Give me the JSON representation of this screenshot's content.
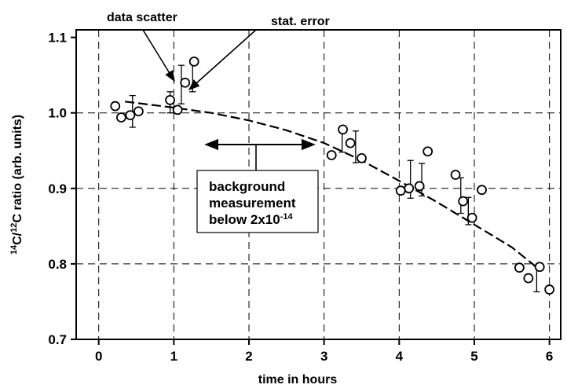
{
  "chart_data": {
    "type": "scatter",
    "title": "",
    "xlabel": "time in hours",
    "ylabel_sup1": "14",
    "ylabel_mid": "C/",
    "ylabel_sup2": "12",
    "ylabel_rest": "C ratio (arb. units)",
    "xlim": [
      -0.3,
      6.15
    ],
    "ylim": [
      0.7,
      1.11
    ],
    "xticks": [
      0,
      1,
      2,
      3,
      4,
      5,
      6
    ],
    "xtick_labels": [
      "0",
      "1",
      "2",
      "3",
      "4",
      "5",
      "6"
    ],
    "yticks": [
      0.7,
      0.8,
      0.9,
      1.0,
      1.1
    ],
    "ytick_labels": [
      "0.7",
      "0.8",
      "0.9",
      "1.0",
      "1.1"
    ],
    "grid": true,
    "points": [
      {
        "x": 0.22,
        "y": 1.009
      },
      {
        "x": 0.3,
        "y": 0.994
      },
      {
        "x": 0.42,
        "y": 0.997
      },
      {
        "x": 0.53,
        "y": 1.002
      },
      {
        "x": 0.95,
        "y": 1.017
      },
      {
        "x": 1.05,
        "y": 1.004
      },
      {
        "x": 1.15,
        "y": 1.04
      },
      {
        "x": 1.27,
        "y": 1.068
      },
      {
        "x": 3.1,
        "y": 0.944
      },
      {
        "x": 3.25,
        "y": 0.978
      },
      {
        "x": 3.35,
        "y": 0.96
      },
      {
        "x": 3.5,
        "y": 0.94
      },
      {
        "x": 4.02,
        "y": 0.897
      },
      {
        "x": 4.13,
        "y": 0.9
      },
      {
        "x": 4.27,
        "y": 0.903
      },
      {
        "x": 4.38,
        "y": 0.949
      },
      {
        "x": 4.75,
        "y": 0.918
      },
      {
        "x": 4.85,
        "y": 0.883
      },
      {
        "x": 4.97,
        "y": 0.861
      },
      {
        "x": 5.1,
        "y": 0.898
      },
      {
        "x": 5.6,
        "y": 0.795
      },
      {
        "x": 5.72,
        "y": 0.781
      },
      {
        "x": 5.87,
        "y": 0.796
      },
      {
        "x": 6.0,
        "y": 0.766
      }
    ],
    "error_bars": [
      {
        "x": 0.45,
        "low": 0.981,
        "high": 1.023
      },
      {
        "x": 0.95,
        "low": 1.0,
        "high": 1.028
      },
      {
        "x": 1.1,
        "low": 1.012,
        "high": 1.063
      },
      {
        "x": 1.25,
        "low": 1.028,
        "high": 1.068
      },
      {
        "x": 3.24,
        "low": 0.948,
        "high": 0.976
      },
      {
        "x": 3.42,
        "low": 0.934,
        "high": 0.976
      },
      {
        "x": 4.15,
        "low": 0.887,
        "high": 0.937
      },
      {
        "x": 4.3,
        "low": 0.89,
        "high": 0.933
      },
      {
        "x": 4.82,
        "low": 0.867,
        "high": 0.914
      },
      {
        "x": 4.92,
        "low": 0.852,
        "high": 0.888
      },
      {
        "x": 5.83,
        "low": 0.763,
        "high": 0.797
      }
    ],
    "trend": {
      "style": "dashed",
      "x": [
        0.35,
        1.0,
        1.5,
        2.0,
        2.5,
        3.0,
        3.5,
        4.0,
        4.5,
        5.0,
        5.5,
        5.85
      ],
      "y": [
        1.015,
        1.007,
        1.0,
        0.99,
        0.977,
        0.96,
        0.937,
        0.91,
        0.882,
        0.852,
        0.822,
        0.794
      ]
    },
    "annotations": {
      "data_scatter": "data scatter",
      "stat_error": "stat. error",
      "box_line1": "background",
      "box_line2": "measurement",
      "box_line3_main": "below 2x10",
      "box_line3_sup": "-14"
    }
  }
}
